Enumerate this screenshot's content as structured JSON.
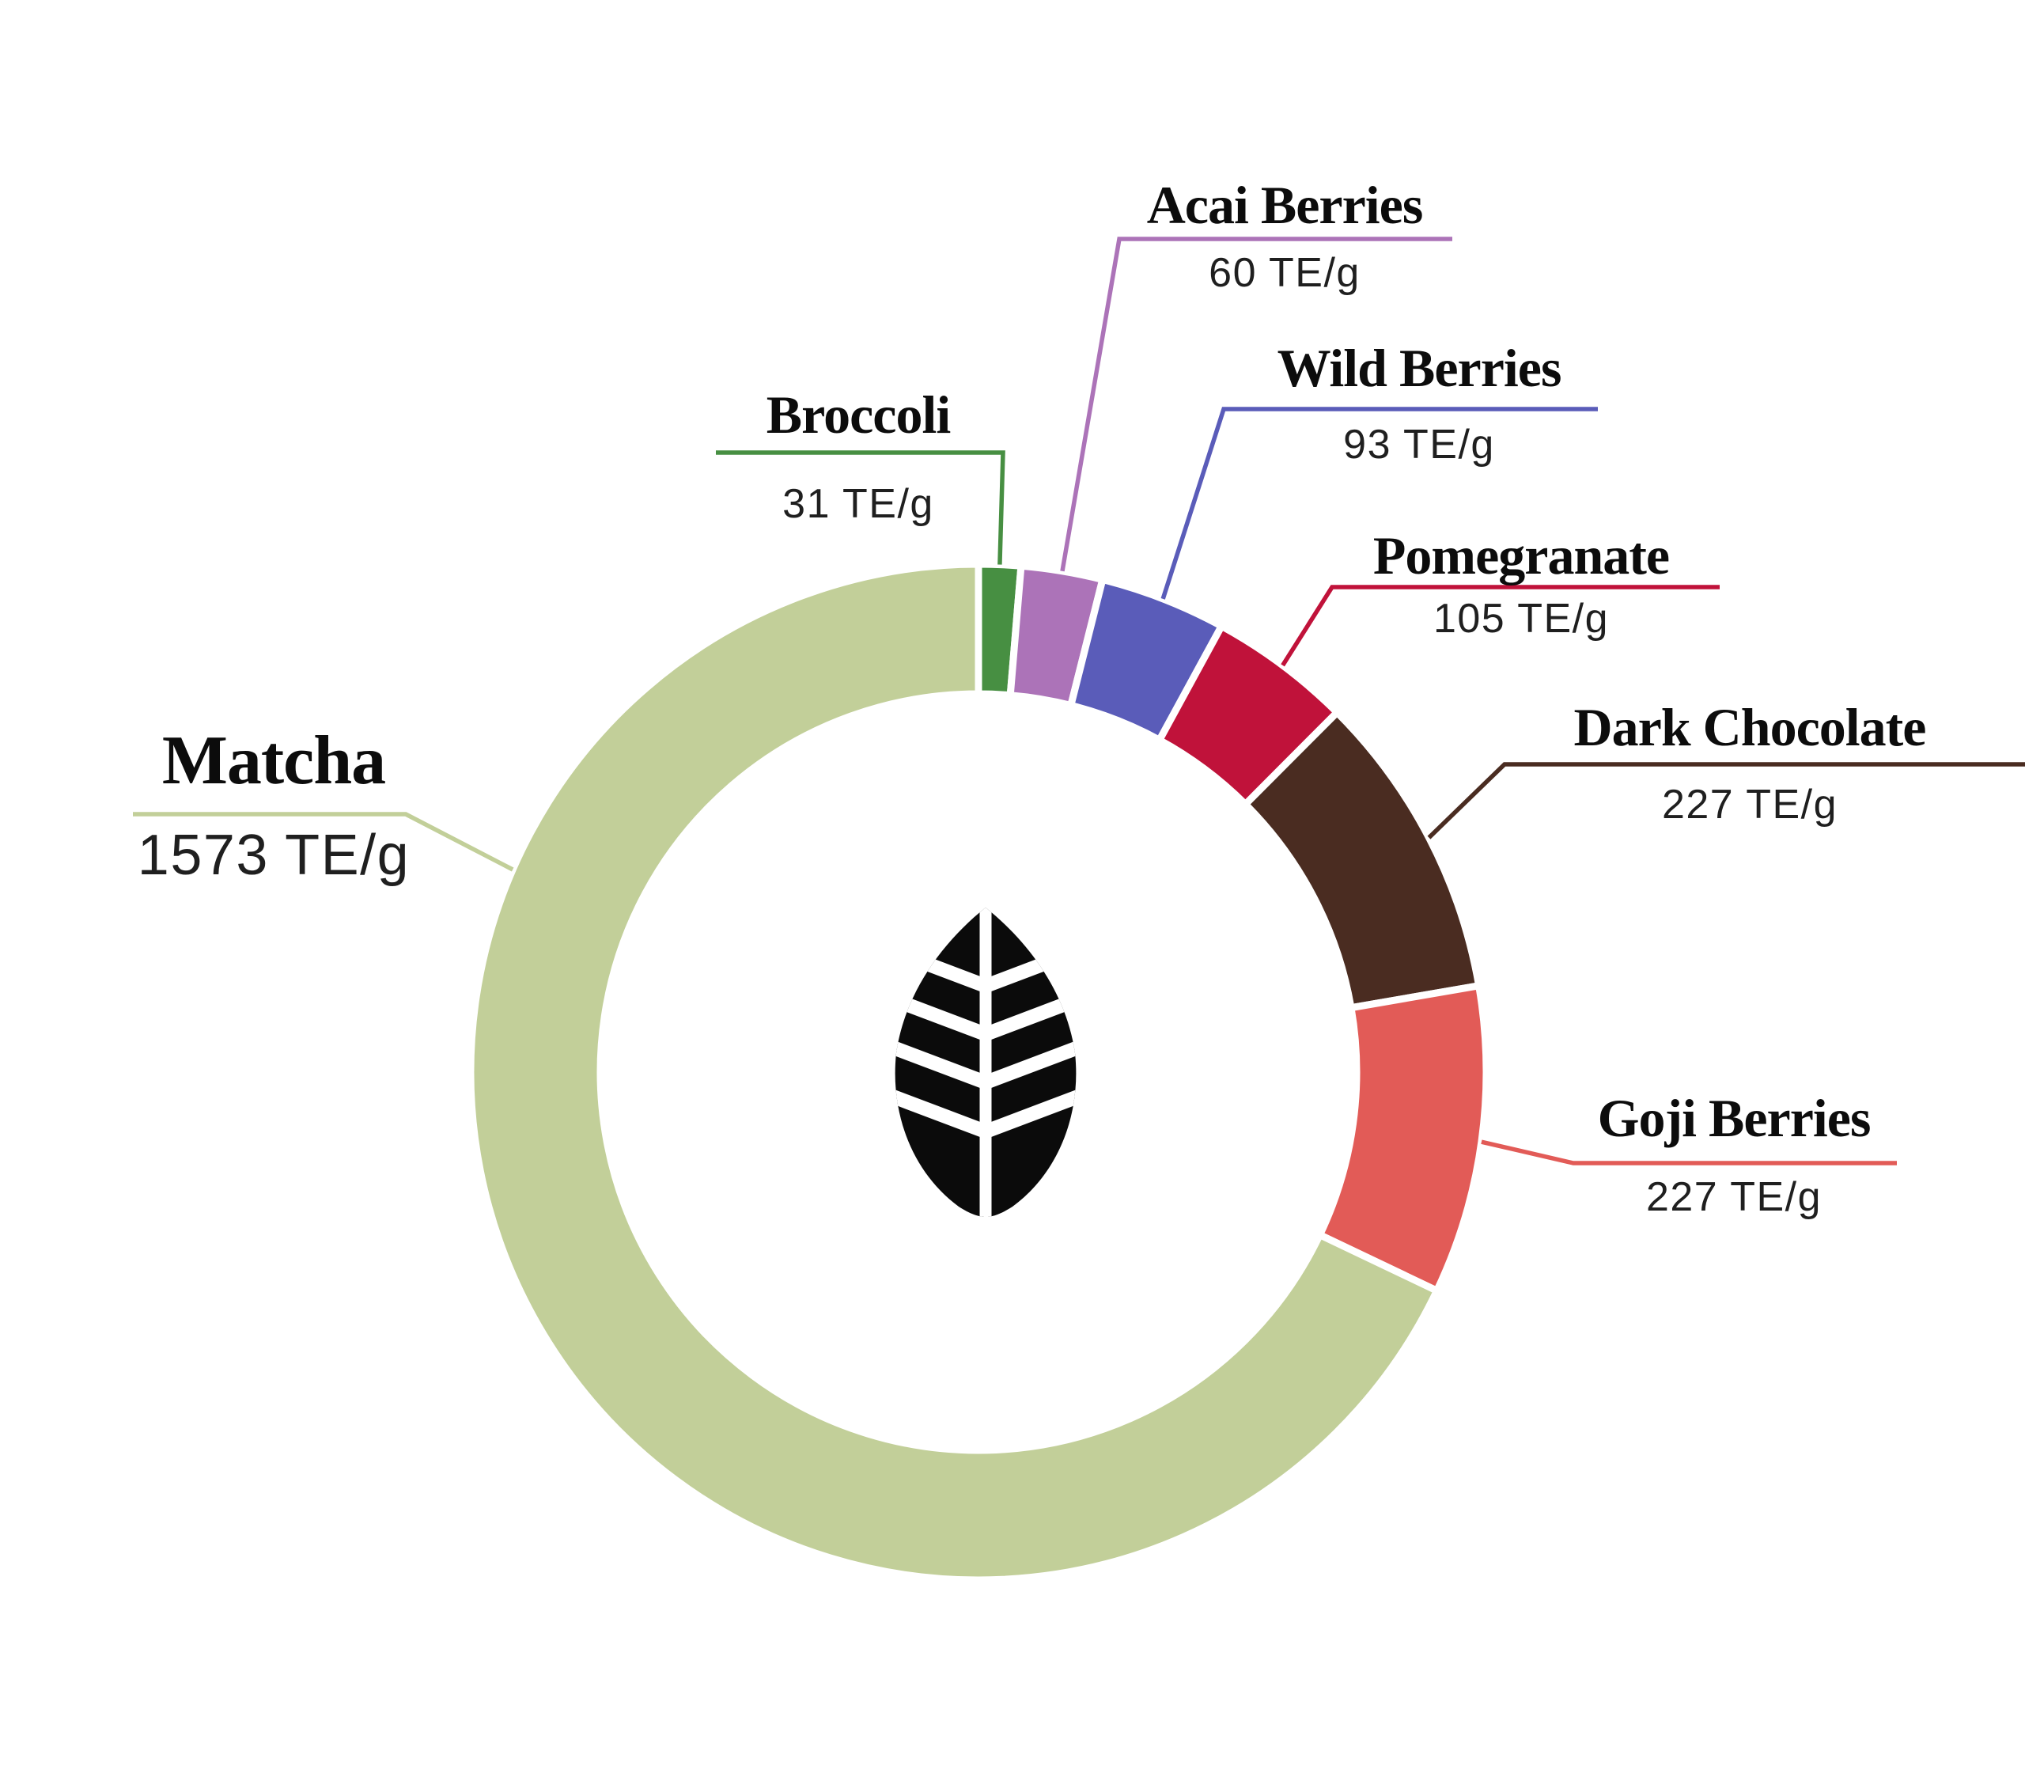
{
  "chart_data": {
    "type": "pie",
    "subtype": "donut",
    "title": "",
    "unit": "TE/g",
    "start_angle_deg": 0,
    "direction": "clockwise",
    "legend": "none",
    "background": "#ffffff",
    "center_icon": "leaf-icon",
    "center_icon_color": "#0b0b0b",
    "gap_color": "#ffffff",
    "items": [
      {
        "label": "Broccoli",
        "value": 31,
        "value_text": "31 TE/g",
        "color": "#478f42"
      },
      {
        "label": "Acai Berries",
        "value": 60,
        "value_text": "60 TE/g",
        "color": "#ac73b8"
      },
      {
        "label": "Wild Berries",
        "value": 93,
        "value_text": "93 TE/g",
        "color": "#5a5cb9"
      },
      {
        "label": "Pomegranate",
        "value": 105,
        "value_text": "105 TE/g",
        "color": "#c0123a"
      },
      {
        "label": "Dark Chocolate",
        "value": 227,
        "value_text": "227 TE/g",
        "color": "#4a2c21"
      },
      {
        "label": "Goji Berries",
        "value": 227,
        "value_text": "227 TE/g",
        "color": "#e25b57"
      },
      {
        "label": "Matcha",
        "value": 1573,
        "value_text": "1573 TE/g",
        "color": "#c2cf99"
      }
    ]
  }
}
